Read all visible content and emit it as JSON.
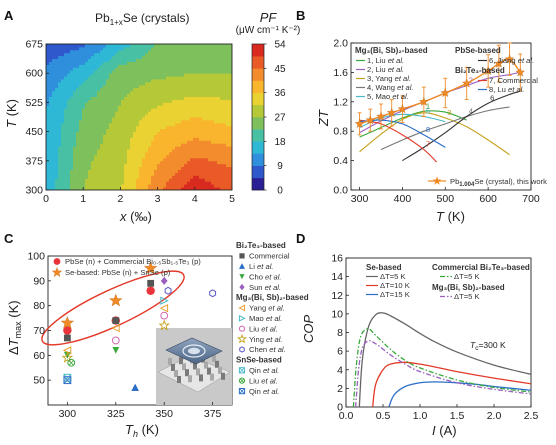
{
  "panels": {
    "a": "A",
    "b": "B",
    "c": "C",
    "d": "D"
  },
  "chart_data": [
    {
      "type": "heatmap",
      "panel": "A",
      "title": "Pb1+xSe (crystals)",
      "title_base": "Pb",
      "title_sub": "1+x",
      "title_end": "Se (crystals)",
      "xlabel": "x (‰)",
      "xlabel_var": "x",
      "xlabel_unit": " (‰)",
      "ylabel": "T (K)",
      "ylabel_var": "T",
      "ylabel_unit": " (K)",
      "xlim": [
        0,
        5
      ],
      "ylim": [
        300,
        675
      ],
      "xticks": [
        "0",
        "1",
        "2",
        "3",
        "4",
        "5"
      ],
      "yticks": [
        "300",
        "375",
        "450",
        "525",
        "600",
        "675"
      ],
      "x": [
        0,
        1,
        2,
        3,
        4,
        5
      ],
      "y": [
        300,
        375,
        450,
        525,
        600,
        675
      ],
      "values": [
        [
          15,
          27,
          31,
          44,
          53,
          48
        ],
        [
          14,
          26,
          30,
          40,
          46,
          44
        ],
        [
          14,
          24,
          29,
          36,
          39,
          37
        ],
        [
          13,
          22,
          27,
          31,
          33,
          32
        ],
        [
          10,
          16,
          25,
          26,
          27,
          27
        ],
        [
          6,
          8,
          16,
          23,
          24,
          25
        ]
      ],
      "colorbar": {
        "label_line1": "PF",
        "label_line2": "(μW cm⁻¹ K⁻²)",
        "min": 0,
        "max": 54,
        "step": 4.5,
        "ticks": [
          "0",
          "9",
          "18",
          "27",
          "36",
          "45",
          "54"
        ],
        "colors": [
          "#2a1f94",
          "#2e58cc",
          "#2f8fdc",
          "#2fb7d6",
          "#48c0a4",
          "#7ec05c",
          "#b4c838",
          "#ead232",
          "#f9b52d",
          "#f38c2c",
          "#ea5a27",
          "#d92a20"
        ]
      }
    },
    {
      "type": "line",
      "panel": "B",
      "ylabel": "ZT",
      "xlabel": "T (K)",
      "xlabel_var": "T",
      "xlabel_unit": " (K)",
      "xlim": [
        280,
        700
      ],
      "ylim": [
        0,
        2.0
      ],
      "xticks": [
        "300",
        "400",
        "500",
        "600",
        "700"
      ],
      "yticks": [
        "0.0",
        "0.4",
        "0.8",
        "1.2",
        "1.6",
        "2.0"
      ],
      "legend": {
        "mg_head": "Mg₃(Bi, Sb)₂-based",
        "pbse_head": "PbSe-based",
        "bite_head": "Bi₂Te₃-based",
        "mg_items": [
          {
            "num": "1, ",
            "name": "Liu",
            "etal": " et al."
          },
          {
            "num": "2, ",
            "name": "Liu",
            "etal": " et al."
          },
          {
            "num": "3, ",
            "name": "Yang",
            "etal": " et al."
          },
          {
            "num": "4, ",
            "name": "Wang",
            "etal": " et al."
          },
          {
            "num": "5, ",
            "name": "Mao",
            "etal": " et al."
          }
        ],
        "pbse_items": [
          {
            "num": "6, ",
            "name": "Jiang",
            "etal": " et al."
          }
        ],
        "bite_items": [
          {
            "num": "7, ",
            "name": "Commercial",
            "etal": ""
          },
          {
            "num": "8, ",
            "name": "Lu",
            "etal": " et al."
          }
        ],
        "star_base": "Pb",
        "star_sub": "1.004",
        "star_end": "Se (crystal), this work"
      },
      "series": [
        {
          "label": "1",
          "color": "#3aa93c",
          "x": [
            300,
            350,
            400,
            450,
            500,
            550
          ],
          "values": [
            0.72,
            0.85,
            0.98,
            1.07,
            1.06,
            0.95
          ]
        },
        {
          "label": "2",
          "color": "#9a5fbf",
          "x": [
            300,
            350,
            400,
            450,
            500,
            550,
            600,
            650,
            673
          ],
          "values": [
            0.78,
            0.94,
            1.08,
            1.2,
            1.32,
            1.42,
            1.52,
            1.57,
            1.6
          ]
        },
        {
          "label": "3",
          "color": "#c4a11a",
          "x": [
            300,
            350,
            400,
            450,
            500,
            550,
            600,
            650
          ],
          "values": [
            0.52,
            0.76,
            0.96,
            1.05,
            0.98,
            0.86,
            0.68,
            0.48
          ]
        },
        {
          "label": "4",
          "color": "#777777",
          "x": [
            350,
            400,
            450,
            500,
            550,
            600,
            650
          ],
          "values": [
            0.55,
            0.68,
            0.8,
            0.9,
            1.0,
            1.08,
            1.13
          ]
        },
        {
          "label": "5",
          "color": "#49b8c9",
          "x": [
            300,
            350,
            400,
            450,
            500
          ],
          "values": [
            0.85,
            0.98,
            1.03,
            1.0,
            0.93
          ]
        },
        {
          "label": "6",
          "color": "#333333",
          "x": [
            400,
            450,
            500,
            550,
            600,
            650,
            673
          ],
          "values": [
            0.4,
            0.58,
            0.78,
            1.0,
            1.18,
            1.3,
            1.34
          ]
        },
        {
          "label": "7",
          "color": "#e33a2a",
          "x": [
            300,
            350,
            400,
            450,
            480
          ],
          "values": [
            0.95,
            0.9,
            0.75,
            0.55,
            0.38
          ]
        },
        {
          "label": "8",
          "color": "#2a6ec8",
          "x": [
            300,
            350,
            400,
            450,
            500
          ],
          "values": [
            0.93,
            0.95,
            0.9,
            0.75,
            0.58
          ]
        }
      ],
      "star_series": {
        "color": "#f08a24",
        "x": [
          300,
          325,
          350,
          375,
          400,
          450,
          500,
          550,
          600,
          625,
          650,
          675
        ],
        "values": [
          0.9,
          0.95,
          1.0,
          1.05,
          1.1,
          1.2,
          1.32,
          1.45,
          1.62,
          1.72,
          1.78,
          1.6
        ],
        "errors": [
          0.15,
          0.15,
          0.17,
          0.18,
          0.18,
          0.2,
          0.2,
          0.22,
          0.22,
          0.25,
          0.22,
          0.25
        ]
      }
    },
    {
      "type": "scatter",
      "panel": "C",
      "ylabel": "ΔT max (K)",
      "ylabel_delta": "Δ",
      "ylabel_var": "T",
      "ylabel_sub": "max",
      "ylabel_unit": " (K)",
      "xlabel": "Th (K)",
      "xlabel_var": "T",
      "xlabel_sub": "h",
      "xlabel_unit": " (K)",
      "xlim": [
        290,
        385
      ],
      "ylim": [
        40,
        100
      ],
      "xticks": [
        "300",
        "325",
        "350",
        "375"
      ],
      "yticks": [
        "50",
        "60",
        "70",
        "80",
        "90",
        "100"
      ],
      "legend_main": [
        {
          "marker": "circle",
          "color": "#e8343a",
          "text": "PbSe (n) + Commercial Bi₀.₅Sb₁.₅Te₃ (p)"
        },
        {
          "marker": "star",
          "color": "#f08a24",
          "text": "Se-based: PbSe (n) + SnSe (p)"
        }
      ],
      "legend_side": [
        {
          "head": "Bi₂Te₃-based"
        },
        {
          "marker": "square",
          "color": "#555555",
          "name": "Commercial",
          "etal": ""
        },
        {
          "marker": "triangle",
          "color": "#2a6ec8",
          "name": "Li",
          "etal": " et al."
        },
        {
          "marker": "tridown",
          "color": "#3aa93c",
          "name": "Cho",
          "etal": " et al."
        },
        {
          "marker": "diamond",
          "color": "#9a5fbf",
          "name": "Sun",
          "etal": " et al."
        },
        {
          "head": "Mg₃(Bi, Sb)₂-based"
        },
        {
          "marker": "tril",
          "color": "#e8a030",
          "name": "Yang",
          "etal": " et al."
        },
        {
          "marker": "trir",
          "color": "#49b8c9",
          "name": "Mao",
          "etal": " et al."
        },
        {
          "marker": "ocircle",
          "color": "#d46ab0",
          "name": "Liu",
          "etal": " et al."
        },
        {
          "marker": "ostar",
          "color": "#c4a11a",
          "name": "Ying",
          "etal": " et al."
        },
        {
          "marker": "hex",
          "color": "#5a5ac8",
          "name": "Chen",
          "etal": " et al."
        },
        {
          "head": "SnSe-based"
        },
        {
          "marker": "xsq",
          "color": "#49b8c9",
          "name": "Qin",
          "etal": " et al."
        },
        {
          "marker": "xcirc",
          "color": "#3aa93c",
          "name": "Liu",
          "etal": " et al."
        },
        {
          "marker": "xsq",
          "color": "#2a6ec8",
          "name": "Qin",
          "etal": " et al."
        }
      ],
      "series": [
        {
          "name": "PbSe (n) + Commercial Bi0.5Sb1.5Te3 (p)",
          "marker": "circle",
          "color": "#e8343a",
          "x": [
            300,
            325,
            343
          ],
          "values": [
            70,
            74,
            86
          ]
        },
        {
          "name": "Se-based: PbSe (n) + SnSe (p)",
          "marker": "star",
          "color": "#f08a24",
          "x": [
            300,
            325,
            343
          ],
          "values": [
            73,
            82,
            95
          ]
        },
        {
          "name": "Commercial",
          "marker": "square",
          "color": "#555555",
          "x": [
            300,
            325,
            343
          ],
          "values": [
            67,
            74,
            89
          ]
        },
        {
          "name": "Li",
          "marker": "triangle",
          "color": "#2a6ec8",
          "x": [
            335
          ],
          "values": [
            47
          ]
        },
        {
          "name": "Cho",
          "marker": "tridown",
          "color": "#3aa93c",
          "x": [
            300,
            325
          ],
          "values": [
            60,
            62
          ]
        },
        {
          "name": "Sun",
          "marker": "diamond",
          "color": "#9a5fbf",
          "x": [
            350
          ],
          "values": [
            90
          ]
        },
        {
          "name": "Yang",
          "marker": "tril",
          "color": "#e8a030",
          "x": [
            300,
            325,
            350
          ],
          "values": [
            62,
            71,
            79
          ]
        },
        {
          "name": "Mao",
          "marker": "trir",
          "color": "#49b8c9",
          "x": [
            350
          ],
          "values": [
            82
          ]
        },
        {
          "name": "Liu",
          "marker": "ocircle",
          "color": "#d46ab0",
          "x": [
            325,
            350
          ],
          "values": [
            66,
            76
          ]
        },
        {
          "name": "Ying",
          "marker": "ostar",
          "color": "#c4a11a",
          "x": [
            300,
            350
          ],
          "values": [
            59,
            72
          ]
        },
        {
          "name": "Chen",
          "marker": "hex",
          "color": "#5a5ac8",
          "x": [
            352,
            375
          ],
          "values": [
            86,
            85
          ]
        },
        {
          "name": "Qin",
          "marker": "xsq",
          "color": "#49b8c9",
          "x": [
            300
          ],
          "values": [
            51
          ]
        },
        {
          "name": "Liu (SnSe)",
          "marker": "xcirc",
          "color": "#3aa93c",
          "x": [
            302
          ],
          "values": [
            57
          ]
        },
        {
          "name": "Qin (2)",
          "marker": "xsq",
          "color": "#2a6ec8",
          "x": [
            300
          ],
          "values": [
            50
          ]
        }
      ]
    },
    {
      "type": "line",
      "panel": "D",
      "ylabel": "COP",
      "xlabel": "I (A)",
      "xlabel_var": "I",
      "xlabel_unit": " (A)",
      "xlim": [
        0,
        2.5
      ],
      "ylim": [
        0,
        16
      ],
      "xticks": [
        "0.0",
        "0.5",
        "1.0",
        "1.5",
        "2.0",
        "2.5"
      ],
      "yticks": [
        "0",
        "2",
        "4",
        "6",
        "8",
        "10",
        "12",
        "14",
        "16"
      ],
      "annotation_var": "T",
      "annotation_sub": "c",
      "annotation_val": "=300 K",
      "legend": {
        "se_head": "Se-based",
        "com_head": "Commercial Bi₂Te₃-based",
        "mg_head": "Mg₃(Bi, Sb)₂-based",
        "items": [
          {
            "group": "se",
            "text": "ΔT=5 K",
            "color": "#666666",
            "dash": ""
          },
          {
            "group": "se",
            "text": "ΔT=10 K",
            "color": "#e33a2a",
            "dash": ""
          },
          {
            "group": "se",
            "text": "ΔT=15 K",
            "color": "#2a6ec8",
            "dash": ""
          },
          {
            "group": "com",
            "text": "ΔT=5 K",
            "color": "#3aa93c",
            "dash": "5,2,1.5,2"
          },
          {
            "group": "mg",
            "text": "ΔT=5 K",
            "color": "#9a5fbf",
            "dash": "5,2,1.5,2"
          }
        ]
      },
      "series": [
        {
          "name": "Se-based ΔT=5 K",
          "color": "#666666",
          "dash": "",
          "x": [
            0.18,
            0.22,
            0.3,
            0.4,
            0.5,
            0.6,
            0.8,
            1.0,
            1.2,
            1.5,
            2.0,
            2.5
          ],
          "values": [
            0,
            5,
            8.5,
            9.9,
            10.1,
            9.8,
            8.9,
            7.9,
            7.0,
            5.9,
            4.5,
            3.5
          ]
        },
        {
          "name": "Se-based ΔT=10 K",
          "color": "#e33a2a",
          "dash": "",
          "x": [
            0.36,
            0.4,
            0.5,
            0.6,
            0.8,
            1.0,
            1.2,
            1.5,
            2.0,
            2.5
          ],
          "values": [
            0,
            2.4,
            4.0,
            4.6,
            4.8,
            4.6,
            4.3,
            3.8,
            3.1,
            2.5
          ]
        },
        {
          "name": "Se-based ΔT=15 K",
          "color": "#2a6ec8",
          "dash": "",
          "x": [
            0.58,
            0.65,
            0.8,
            1.0,
            1.2,
            1.5,
            1.8,
            2.0,
            2.5
          ],
          "values": [
            0,
            1.3,
            2.2,
            2.6,
            2.7,
            2.6,
            2.4,
            2.2,
            1.8
          ]
        },
        {
          "name": "Commercial Bi2Te3-based ΔT=5 K",
          "color": "#3aa93c",
          "dash": "5,2,1.5,2",
          "x": [
            0.1,
            0.14,
            0.2,
            0.3,
            0.4,
            0.6,
            0.8,
            1.0,
            1.5,
            2.0,
            2.5
          ],
          "values": [
            0,
            4.5,
            7.6,
            8.4,
            7.7,
            6.2,
            5.0,
            4.2,
            2.9,
            2.1,
            1.6
          ]
        },
        {
          "name": "Mg3(Bi, Sb)2-based ΔT=5 K",
          "color": "#9a5fbf",
          "dash": "5,2,1.5,2",
          "x": [
            0.13,
            0.17,
            0.22,
            0.3,
            0.4,
            0.6,
            0.8,
            1.0,
            1.5,
            2.0,
            2.5
          ],
          "values": [
            0,
            4.0,
            6.3,
            7.1,
            6.8,
            5.6,
            4.6,
            3.8,
            2.6,
            1.9,
            1.4
          ]
        }
      ]
    }
  ]
}
